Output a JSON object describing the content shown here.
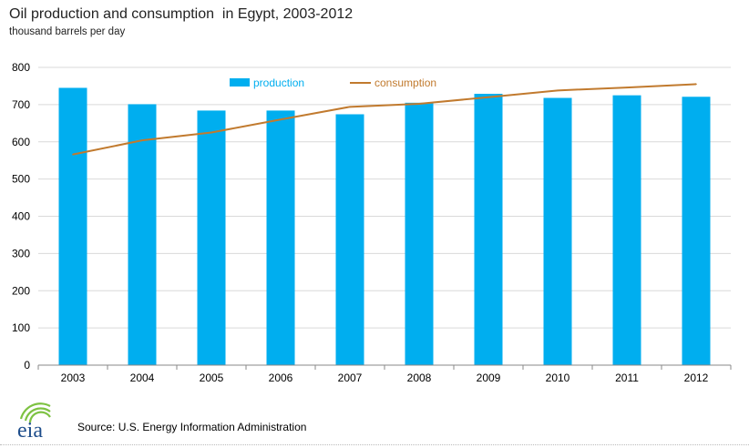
{
  "header": {
    "title": "Oil production and consumption  in Egypt, 2003-2012",
    "subtitle": "thousand barrels per day"
  },
  "footer": {
    "logo_text": "eia",
    "source": "Source: U.S. Energy Information Administration"
  },
  "colors": {
    "production": "#00aeef",
    "consumption": "#c17a2e",
    "grid": "#d9d9d9",
    "logo_arcs": "#7dc242",
    "logo_text": "#1f4e8c"
  },
  "chart_data": {
    "type": "bar",
    "title": "Oil production and consumption  in Egypt, 2003-2012",
    "subtitle": "thousand barrels per day",
    "categories": [
      "2003",
      "2004",
      "2005",
      "2006",
      "2007",
      "2008",
      "2009",
      "2010",
      "2011",
      "2012"
    ],
    "series": [
      {
        "name": "production",
        "type": "bar",
        "values": [
          745,
          701,
          684,
          684,
          674,
          705,
          729,
          718,
          725,
          721
        ]
      },
      {
        "name": "consumption",
        "type": "line",
        "values": [
          566,
          604,
          625,
          660,
          694,
          702,
          720,
          738,
          746,
          755
        ]
      }
    ],
    "ylim": [
      0,
      800
    ],
    "yticks": [
      0,
      100,
      200,
      300,
      400,
      500,
      600,
      700,
      800
    ],
    "grid": true,
    "legend": "top"
  }
}
